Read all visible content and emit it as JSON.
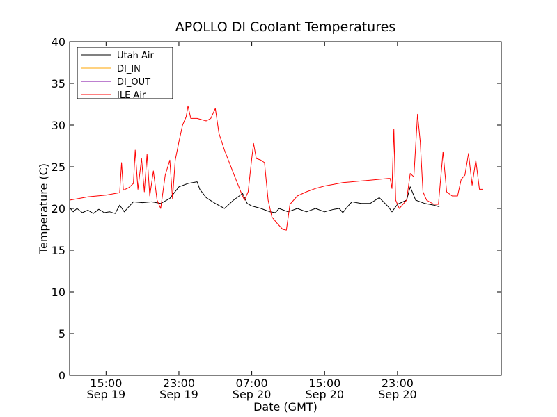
{
  "chart_data": {
    "type": "line",
    "title": "APOLLO DI Coolant Temperatures",
    "xlabel": "Date (GMT)",
    "ylabel": "Temperature (C)",
    "ylim": [
      0,
      40
    ],
    "yticks": [
      0,
      5,
      10,
      15,
      20,
      25,
      30,
      35,
      40
    ],
    "xlim_hours": [
      11.0,
      58.4
    ],
    "xticks": [
      {
        "hour": 15,
        "line1": "15:00",
        "line2": "Sep 19"
      },
      {
        "hour": 23,
        "line1": "23:00",
        "line2": "Sep 19"
      },
      {
        "hour": 31,
        "line1": "07:00",
        "line2": "Sep 20"
      },
      {
        "hour": 39,
        "line1": "15:00",
        "line2": "Sep 20"
      },
      {
        "hour": 47,
        "line1": "23:00",
        "line2": "Sep 20"
      }
    ],
    "x_unit_note": "hours since 00:00 Sep 19 GMT",
    "legend_position": "top-left",
    "series": [
      {
        "name": "Utah Air",
        "color": "#000000",
        "points": [
          [
            11.0,
            20.1
          ],
          [
            11.4,
            19.6
          ],
          [
            11.8,
            20.0
          ],
          [
            12.4,
            19.5
          ],
          [
            13.0,
            19.8
          ],
          [
            13.6,
            19.4
          ],
          [
            14.2,
            19.9
          ],
          [
            14.8,
            19.5
          ],
          [
            15.4,
            19.6
          ],
          [
            16.0,
            19.4
          ],
          [
            16.5,
            20.4
          ],
          [
            17.0,
            19.6
          ],
          [
            17.5,
            20.2
          ],
          [
            18.0,
            20.8
          ],
          [
            19.0,
            20.7
          ],
          [
            20.0,
            20.8
          ],
          [
            21.0,
            20.6
          ],
          [
            22.0,
            21.2
          ],
          [
            23.0,
            22.6
          ],
          [
            24.0,
            23.0
          ],
          [
            25.0,
            23.2
          ],
          [
            25.3,
            22.3
          ],
          [
            26.0,
            21.3
          ],
          [
            27.0,
            20.6
          ],
          [
            28.0,
            20.0
          ],
          [
            29.0,
            21.0
          ],
          [
            30.0,
            21.8
          ],
          [
            30.5,
            20.6
          ],
          [
            31.0,
            20.3
          ],
          [
            32.0,
            20.0
          ],
          [
            33.0,
            19.6
          ],
          [
            33.6,
            19.5
          ],
          [
            34.0,
            20.0
          ],
          [
            35.0,
            19.6
          ],
          [
            36.0,
            20.0
          ],
          [
            37.0,
            19.6
          ],
          [
            38.0,
            20.0
          ],
          [
            39.0,
            19.6
          ],
          [
            40.0,
            19.9
          ],
          [
            40.6,
            20.0
          ],
          [
            41.0,
            19.5
          ],
          [
            41.5,
            20.2
          ],
          [
            42.0,
            20.8
          ],
          [
            43.0,
            20.6
          ],
          [
            44.0,
            20.6
          ],
          [
            45.0,
            21.3
          ],
          [
            46.0,
            20.2
          ],
          [
            46.4,
            19.6
          ],
          [
            47.0,
            20.5
          ],
          [
            48.0,
            21.0
          ],
          [
            48.4,
            22.6
          ],
          [
            49.0,
            21.0
          ],
          [
            50.0,
            20.6
          ],
          [
            51.0,
            20.4
          ],
          [
            51.6,
            20.2
          ]
        ]
      },
      {
        "name": "DI_IN",
        "color": "#ffa500",
        "points": []
      },
      {
        "name": "DI_OUT",
        "color": "#7b00a0",
        "points": []
      },
      {
        "name": "ILE Air",
        "color": "#ff0000",
        "points": [
          [
            11.0,
            21.0
          ],
          [
            12.0,
            21.2
          ],
          [
            13.0,
            21.4
          ],
          [
            14.0,
            21.5
          ],
          [
            15.0,
            21.6
          ],
          [
            16.0,
            21.8
          ],
          [
            16.5,
            21.9
          ],
          [
            16.7,
            25.5
          ],
          [
            16.9,
            22.2
          ],
          [
            17.5,
            22.5
          ],
          [
            18.0,
            23.0
          ],
          [
            18.2,
            27.0
          ],
          [
            18.5,
            22.3
          ],
          [
            18.9,
            26.0
          ],
          [
            19.2,
            22.0
          ],
          [
            19.5,
            26.5
          ],
          [
            19.8,
            21.5
          ],
          [
            20.2,
            24.5
          ],
          [
            20.6,
            21.0
          ],
          [
            21.0,
            20.0
          ],
          [
            21.5,
            24.0
          ],
          [
            22.0,
            25.8
          ],
          [
            22.3,
            21.2
          ],
          [
            22.6,
            25.8
          ],
          [
            23.0,
            28.0
          ],
          [
            23.4,
            30.0
          ],
          [
            23.8,
            31.0
          ],
          [
            24.0,
            32.3
          ],
          [
            24.3,
            30.8
          ],
          [
            25.0,
            30.8
          ],
          [
            26.0,
            30.5
          ],
          [
            26.5,
            30.8
          ],
          [
            27.0,
            32.0
          ],
          [
            27.4,
            29.0
          ],
          [
            28.0,
            27.0
          ],
          [
            29.0,
            24.2
          ],
          [
            29.8,
            22.0
          ],
          [
            30.2,
            21.0
          ],
          [
            30.6,
            22.0
          ],
          [
            31.0,
            26.0
          ],
          [
            31.2,
            27.8
          ],
          [
            31.5,
            26.0
          ],
          [
            32.0,
            25.8
          ],
          [
            32.4,
            25.5
          ],
          [
            32.8,
            21.0
          ],
          [
            33.2,
            19.0
          ],
          [
            33.8,
            18.2
          ],
          [
            34.4,
            17.5
          ],
          [
            34.8,
            17.4
          ],
          [
            35.2,
            20.5
          ],
          [
            36.0,
            21.5
          ],
          [
            37.0,
            22.0
          ],
          [
            38.0,
            22.4
          ],
          [
            39.0,
            22.7
          ],
          [
            40.0,
            22.9
          ],
          [
            41.0,
            23.1
          ],
          [
            42.0,
            23.2
          ],
          [
            43.0,
            23.3
          ],
          [
            44.0,
            23.4
          ],
          [
            45.0,
            23.5
          ],
          [
            46.0,
            23.6
          ],
          [
            46.2,
            23.6
          ],
          [
            46.4,
            22.4
          ],
          [
            46.6,
            29.5
          ],
          [
            46.8,
            21.0
          ],
          [
            47.2,
            20.0
          ],
          [
            48.0,
            21.0
          ],
          [
            48.4,
            24.2
          ],
          [
            48.8,
            23.8
          ],
          [
            49.2,
            31.3
          ],
          [
            49.5,
            28.0
          ],
          [
            49.8,
            22.0
          ],
          [
            50.2,
            21.0
          ],
          [
            51.0,
            20.5
          ],
          [
            51.5,
            20.5
          ],
          [
            52.0,
            26.8
          ],
          [
            52.4,
            22.0
          ],
          [
            53.0,
            21.5
          ],
          [
            53.6,
            21.5
          ],
          [
            54.0,
            23.5
          ],
          [
            54.4,
            24.0
          ],
          [
            54.8,
            26.6
          ],
          [
            55.2,
            22.8
          ],
          [
            55.6,
            25.8
          ],
          [
            56.0,
            22.3
          ],
          [
            56.4,
            22.3
          ]
        ]
      }
    ]
  }
}
